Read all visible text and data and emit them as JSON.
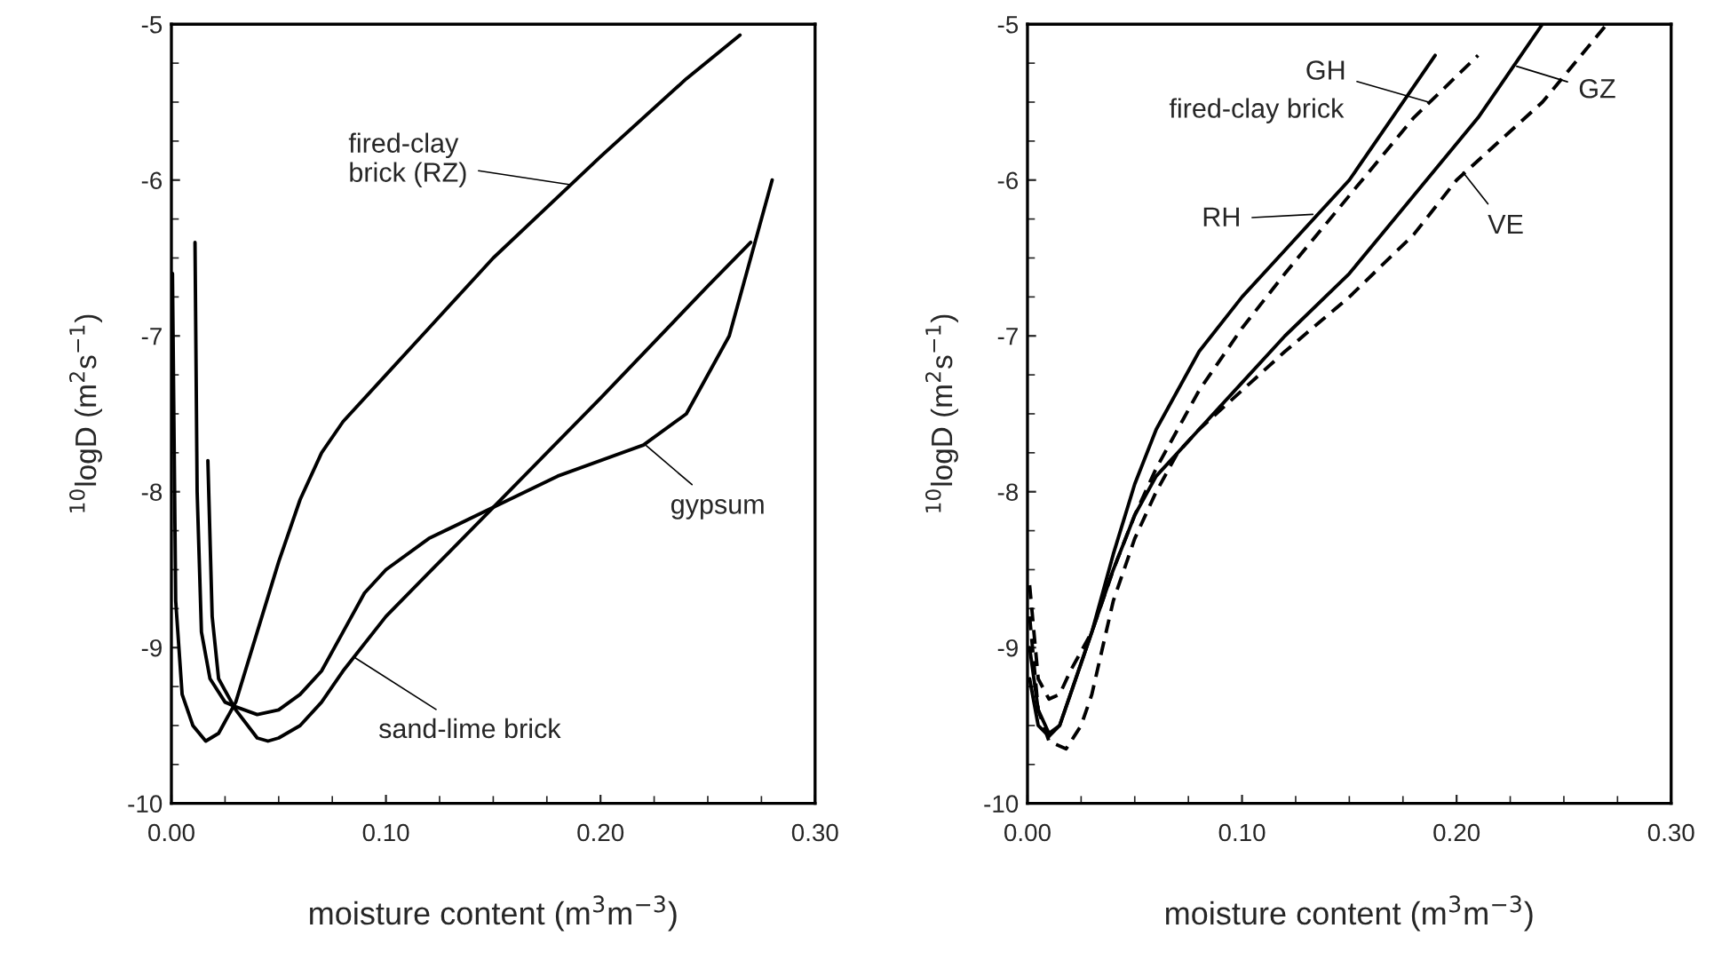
{
  "chart_data": [
    {
      "type": "line",
      "xlabel": "moisture content (m$^{3}$m$^{−3}$)",
      "ylabel": "$^{10}$logD (m$^{2}$s$^{−1}$)",
      "xlim": [
        0,
        0.3
      ],
      "ylim": [
        -10,
        -5
      ],
      "xticks": [
        {
          "value": 0,
          "label": "0.00"
        },
        {
          "value": 0.1,
          "label": "0.10"
        },
        {
          "value": 0.2,
          "label": "0.20"
        },
        {
          "value": 0.3,
          "label": "0.30"
        }
      ],
      "yticks": [
        -10,
        -9,
        -8,
        -7,
        -6,
        -5
      ],
      "grid": false,
      "legend": false,
      "series": [
        {
          "color": "#000000",
          "line_style": "solid",
          "x": [
            0.0005,
            0.002,
            0.005,
            0.01,
            0.016,
            0.022,
            0.03,
            0.04,
            0.05,
            0.06,
            0.07,
            0.08,
            0.1,
            0.12,
            0.15,
            0.2,
            0.24,
            0.265
          ],
          "values": [
            -6.6,
            -8.7,
            -9.3,
            -9.5,
            -9.6,
            -9.55,
            -9.35,
            -8.9,
            -8.45,
            -8.05,
            -7.75,
            -7.55,
            -7.25,
            -6.95,
            -6.5,
            -5.85,
            -5.35,
            -5.07
          ]
        },
        {
          "color": "#000000",
          "line_style": "solid",
          "x": [
            0.011,
            0.012,
            0.014,
            0.018,
            0.025,
            0.03,
            0.04,
            0.05,
            0.06,
            0.07,
            0.08,
            0.09,
            0.1,
            0.12,
            0.15,
            0.18,
            0.22,
            0.24,
            0.26,
            0.27,
            0.28
          ],
          "values": [
            -6.4,
            -8.0,
            -8.9,
            -9.2,
            -9.35,
            -9.38,
            -9.43,
            -9.4,
            -9.3,
            -9.15,
            -8.9,
            -8.65,
            -8.5,
            -8.3,
            -8.1,
            -7.9,
            -7.7,
            -7.5,
            -7.0,
            -6.5,
            -6.0
          ]
        },
        {
          "color": "#000000",
          "line_style": "solid",
          "x": [
            0.017,
            0.019,
            0.022,
            0.03,
            0.04,
            0.045,
            0.05,
            0.06,
            0.07,
            0.08,
            0.1,
            0.12,
            0.15,
            0.2,
            0.25,
            0.27
          ],
          "values": [
            -7.8,
            -8.8,
            -9.2,
            -9.4,
            -9.58,
            -9.6,
            -9.58,
            -9.5,
            -9.35,
            -9.15,
            -8.8,
            -8.52,
            -8.1,
            -7.4,
            -6.68,
            -6.4
          ]
        }
      ],
      "annotations": [
        {
          "text": "fired-clay\nbrick (RZ)",
          "x": 0.186,
          "y": -6.03
        },
        {
          "text": "gypsum",
          "x": 0.221,
          "y": -7.7
        },
        {
          "text": "sand-lime brick",
          "x": 0.085,
          "y": -9.06
        }
      ]
    },
    {
      "type": "line",
      "xlabel": "moisture content (m$^{3}$m$^{−3}$)",
      "ylabel": "$^{10}$logD (m$^{2}$s$^{−1}$)",
      "xlim": [
        0,
        0.3
      ],
      "ylim": [
        -10,
        -5
      ],
      "xticks": [
        {
          "value": 0,
          "label": "0.00"
        },
        {
          "value": 0.1,
          "label": "0.10"
        },
        {
          "value": 0.2,
          "label": "0.20"
        },
        {
          "value": 0.3,
          "label": "0.30"
        }
      ],
      "yticks": [
        -10,
        -9,
        -8,
        -7,
        -6,
        -5
      ],
      "grid": false,
      "legend": false,
      "series": [
        {
          "color": "#000000",
          "line_style": "solid",
          "x": [
            0.001,
            0.005,
            0.01,
            0.015,
            0.02,
            0.03,
            0.04,
            0.05,
            0.06,
            0.08,
            0.1,
            0.12,
            0.15,
            0.17,
            0.19
          ],
          "values": [
            -9.0,
            -9.4,
            -9.55,
            -9.5,
            -9.3,
            -8.9,
            -8.4,
            -7.95,
            -7.6,
            -7.1,
            -6.75,
            -6.45,
            -6.0,
            -5.6,
            -5.2
          ]
        },
        {
          "color": "#000000",
          "line_style": "dashed",
          "x": [
            0.001,
            0.005,
            0.01,
            0.015,
            0.02,
            0.03,
            0.04,
            0.05,
            0.06,
            0.07,
            0.08,
            0.1,
            0.12,
            0.15,
            0.18,
            0.21
          ],
          "values": [
            -8.6,
            -9.2,
            -9.33,
            -9.3,
            -9.15,
            -8.9,
            -8.5,
            -8.15,
            -7.85,
            -7.6,
            -7.35,
            -6.95,
            -6.6,
            -6.1,
            -5.6,
            -5.2
          ]
        },
        {
          "color": "#000000",
          "line_style": "solid",
          "x": [
            0.001,
            0.005,
            0.01,
            0.015,
            0.02,
            0.03,
            0.04,
            0.05,
            0.06,
            0.07,
            0.08,
            0.1,
            0.12,
            0.15,
            0.18,
            0.21,
            0.24
          ],
          "values": [
            -9.2,
            -9.5,
            -9.57,
            -9.5,
            -9.3,
            -8.9,
            -8.5,
            -8.15,
            -7.9,
            -7.75,
            -7.6,
            -7.3,
            -7.0,
            -6.6,
            -6.1,
            -5.6,
            -5.0
          ]
        },
        {
          "color": "#000000",
          "line_style": "dashed",
          "x": [
            0.001,
            0.005,
            0.01,
            0.018,
            0.025,
            0.03,
            0.04,
            0.05,
            0.06,
            0.07,
            0.08,
            0.1,
            0.12,
            0.15,
            0.18,
            0.2,
            0.24,
            0.27
          ],
          "values": [
            -8.8,
            -9.4,
            -9.6,
            -9.65,
            -9.5,
            -9.3,
            -8.7,
            -8.3,
            -8.0,
            -7.75,
            -7.6,
            -7.35,
            -7.1,
            -6.75,
            -6.35,
            -6.0,
            -5.5,
            -5.0
          ]
        }
      ],
      "annotations": [
        "fired-clay brick",
        {
          "text": "GH",
          "x": 0.187,
          "y": -5.5
        },
        {
          "text": "RH",
          "x": 0.133,
          "y": -6.22
        },
        {
          "text": "GZ",
          "x": 0.228,
          "y": -5.27
        },
        {
          "text": "VE",
          "x": 0.203,
          "y": -5.95
        }
      ]
    }
  ]
}
